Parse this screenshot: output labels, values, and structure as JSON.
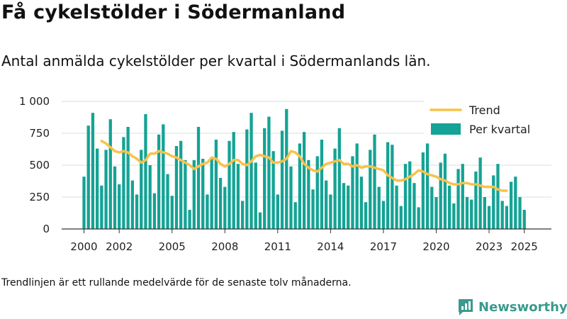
{
  "title": "Få cykelstölder i Södermanland",
  "subtitle": "Antal anmälda cykelstölder per kvartal i Södermanlands län.",
  "footnote": "Trendlinjen är ett rullande medelvärde för de senaste tolv månaderna.",
  "brand": "Newsworthy",
  "colors": {
    "bars": "#14a395",
    "trend": "#f7c24a",
    "grid": "#dddddd",
    "logo": "#3a9a8e"
  },
  "chart_data": {
    "type": "bar",
    "title": "Få cykelstölder i Södermanland",
    "xlabel": "",
    "ylabel": "",
    "ylim": [
      0,
      1000
    ],
    "yticks": [
      0,
      250,
      500,
      750,
      1000
    ],
    "ytick_labels": [
      "0",
      "250",
      "500",
      "750",
      "1 000"
    ],
    "xticks": [
      2000,
      2002,
      2005,
      2008,
      2011,
      2014,
      2017,
      2020,
      2023,
      2025
    ],
    "grid": true,
    "legend": "top-right",
    "x_start_year": 2000,
    "series": [
      {
        "name": "Per kvartal",
        "type": "bar",
        "values": [
          410,
          810,
          910,
          630,
          340,
          620,
          860,
          490,
          350,
          720,
          800,
          380,
          270,
          620,
          900,
          500,
          280,
          740,
          820,
          430,
          260,
          650,
          690,
          540,
          150,
          540,
          800,
          550,
          270,
          560,
          700,
          400,
          330,
          690,
          760,
          510,
          220,
          780,
          910,
          520,
          130,
          790,
          880,
          610,
          270,
          770,
          940,
          490,
          210,
          670,
          760,
          540,
          310,
          570,
          700,
          380,
          270,
          630,
          790,
          360,
          340,
          570,
          670,
          410,
          210,
          620,
          740,
          330,
          220,
          680,
          660,
          340,
          180,
          510,
          530,
          360,
          170,
          600,
          670,
          330,
          250,
          520,
          590,
          340,
          200,
          470,
          510,
          250,
          230,
          450,
          560,
          250,
          180,
          420,
          510,
          220,
          180,
          370,
          410,
          250,
          150
        ]
      },
      {
        "name": "Trend",
        "type": "line",
        "start_index": 4,
        "values": [
          690,
          670,
          640,
          610,
          600,
          610,
          600,
          570,
          550,
          520,
          540,
          590,
          590,
          610,
          600,
          590,
          570,
          560,
          540,
          520,
          500,
          470,
          490,
          510,
          520,
          560,
          550,
          510,
          490,
          510,
          540,
          540,
          510,
          500,
          530,
          570,
          580,
          570,
          560,
          520,
          520,
          530,
          550,
          610,
          600,
          570,
          510,
          480,
          460,
          450,
          480,
          510,
          520,
          530,
          540,
          510,
          510,
          490,
          500,
          480,
          490,
          490,
          480,
          470,
          460,
          420,
          400,
          380,
          380,
          390,
          410,
          430,
          460,
          450,
          430,
          420,
          410,
          390,
          380,
          360,
          350,
          350,
          360,
          360,
          350,
          350,
          340,
          330,
          330,
          330,
          310,
          300,
          300
        ]
      }
    ]
  }
}
